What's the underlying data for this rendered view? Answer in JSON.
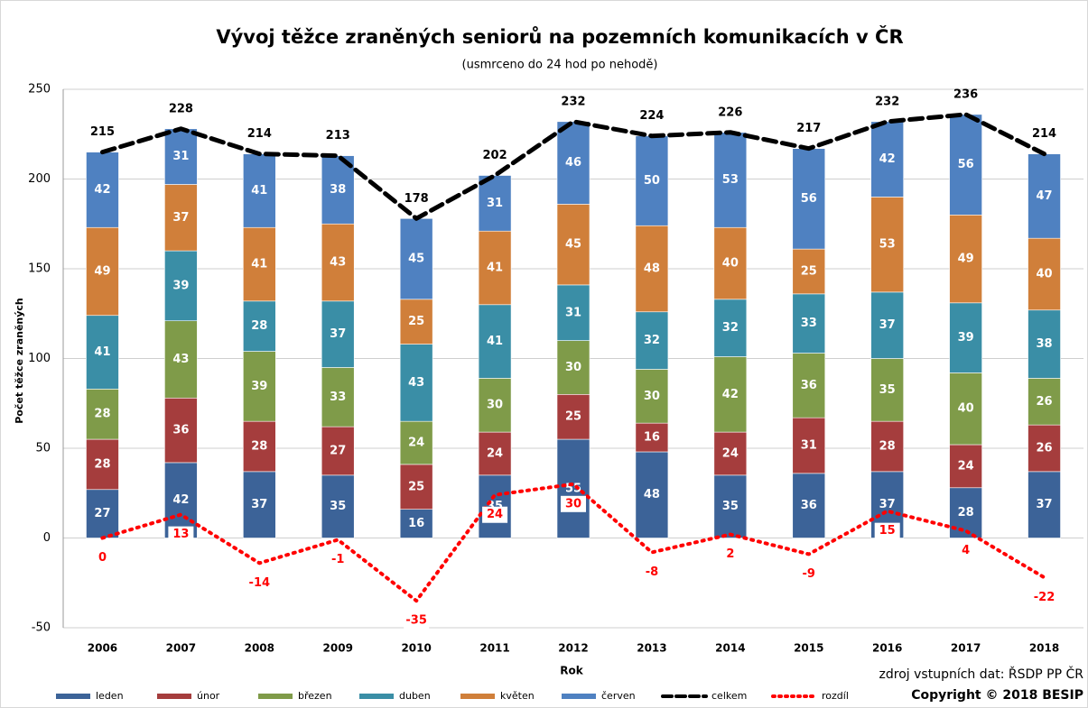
{
  "chart_data": {
    "type": "bar",
    "stacked": true,
    "title": "Vývoj těžce zraněných seniorů na pozemních komunikacích v ČR",
    "subtitle": "(usmrceno do 24 hod po nehodě)",
    "ylabel": "Počet těžce zraněných",
    "xlabel": "Rok",
    "source": "zdroj vstupních dat: ŘSDP PP ČR",
    "copyright": "Copyright © 2018 BESIP",
    "categories": [
      "2006",
      "2007",
      "2008",
      "2009",
      "2010",
      "2011",
      "2012",
      "2013",
      "2014",
      "2015",
      "2016",
      "2017",
      "2018"
    ],
    "ylim": [
      -50,
      250
    ],
    "yticks": [
      -50,
      0,
      50,
      100,
      150,
      200,
      250
    ],
    "grid": true,
    "legend": "bottom",
    "series": [
      {
        "name": "leden",
        "color": "#3c6398",
        "values": [
          27,
          42,
          37,
          35,
          16,
          35,
          55,
          48,
          35,
          36,
          37,
          28,
          37
        ]
      },
      {
        "name": "únor",
        "color": "#a53d3d",
        "values": [
          28,
          36,
          28,
          27,
          25,
          24,
          25,
          16,
          24,
          31,
          28,
          24,
          26
        ]
      },
      {
        "name": "březen",
        "color": "#7f9b49",
        "values": [
          28,
          43,
          39,
          33,
          24,
          30,
          30,
          30,
          42,
          36,
          35,
          40,
          26
        ]
      },
      {
        "name": "duben",
        "color": "#3a8ea6",
        "values": [
          41,
          39,
          28,
          37,
          43,
          41,
          31,
          32,
          32,
          33,
          37,
          39,
          38
        ]
      },
      {
        "name": "květen",
        "color": "#d07f3a",
        "values": [
          49,
          37,
          41,
          43,
          25,
          41,
          45,
          48,
          40,
          25,
          53,
          49,
          40
        ]
      },
      {
        "name": "červen",
        "color": "#4f81c1",
        "values": [
          42,
          31,
          41,
          38,
          45,
          31,
          46,
          50,
          53,
          56,
          42,
          56,
          47
        ]
      },
      {
        "name": "celkem",
        "type": "line",
        "style": "dashed",
        "color": "#000000",
        "values": [
          215,
          228,
          214,
          213,
          178,
          202,
          232,
          224,
          226,
          217,
          232,
          236,
          214
        ]
      },
      {
        "name": "rozdíl",
        "type": "line",
        "style": "dotted",
        "color": "#ff0000",
        "values": [
          0,
          13,
          -14,
          -1,
          -35,
          24,
          30,
          -8,
          2,
          -9,
          15,
          4,
          -22
        ]
      }
    ]
  }
}
